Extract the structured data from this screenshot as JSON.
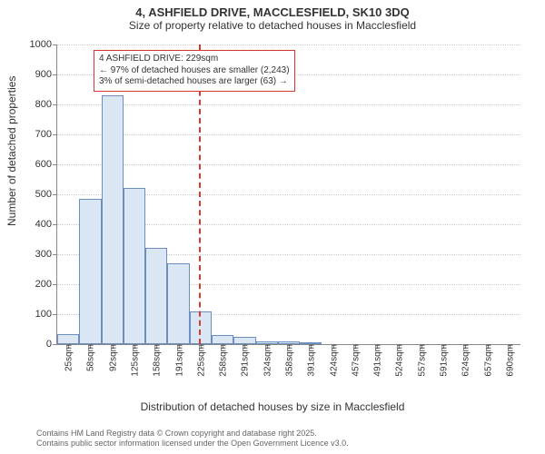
{
  "titles": {
    "main": "4, ASHFIELD DRIVE, MACCLESFIELD, SK10 3DQ",
    "sub": "Size of property relative to detached houses in Macclesfield"
  },
  "axes": {
    "ylabel": "Number of detached properties",
    "xlabel": "Distribution of detached houses by size in Macclesfield"
  },
  "chart": {
    "type": "histogram",
    "ylim": [
      0,
      1000
    ],
    "ytick_step": 100,
    "yticks": [
      0,
      100,
      200,
      300,
      400,
      500,
      600,
      700,
      800,
      900,
      1000
    ],
    "xticks": [
      "25sqm",
      "58sqm",
      "92sqm",
      "125sqm",
      "158sqm",
      "191sqm",
      "225sqm",
      "258sqm",
      "291sqm",
      "324sqm",
      "358sqm",
      "391sqm",
      "424sqm",
      "457sqm",
      "491sqm",
      "524sqm",
      "557sqm",
      "591sqm",
      "624sqm",
      "657sqm",
      "690sqm"
    ],
    "values": [
      32,
      485,
      830,
      520,
      320,
      270,
      110,
      30,
      25,
      10,
      8,
      5,
      0,
      0,
      0,
      0,
      0,
      0,
      0,
      0,
      0
    ],
    "bar_fill": "#dbe7f5",
    "bar_stroke": "#6b8fbf",
    "grid_color": "#cccccc",
    "axis_color": "#888888",
    "background": "#ffffff"
  },
  "reference": {
    "value_sqm": 229,
    "color": "#d43a2f",
    "box": {
      "line1": "4 ASHFIELD DRIVE: 229sqm",
      "line2": "← 97% of detached houses are smaller (2,243)",
      "line3": "3% of semi-detached houses are larger (63) →"
    }
  },
  "footer": {
    "line1": "Contains HM Land Registry data © Crown copyright and database right 2025.",
    "line2": "Contains public sector information licensed under the Open Government Licence v3.0."
  },
  "fonts": {
    "title_size": 13,
    "label_size": 12,
    "tick_size": 11
  }
}
